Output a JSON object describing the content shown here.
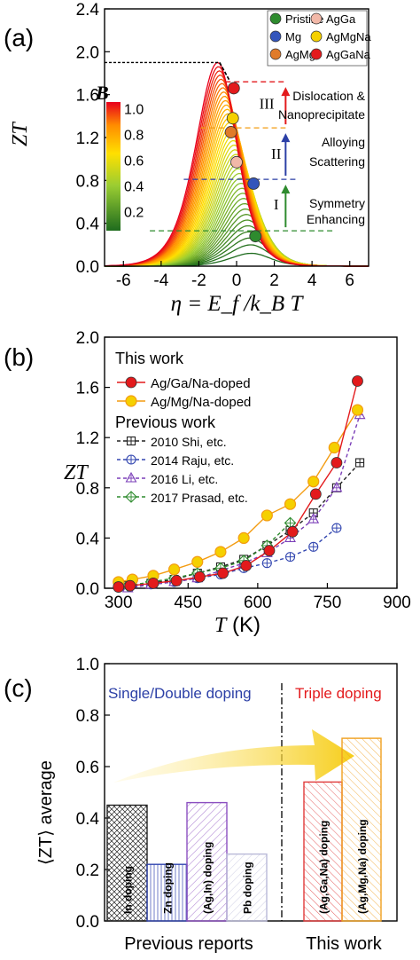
{
  "colors": {
    "red": "#e31a1c",
    "yellow": "#f5d000",
    "orange": "#f39c12",
    "blue": "#2b3fa6",
    "green": "#2e8b2e",
    "purple": "#7b3fb8",
    "darkgreen": "#1e6b1e"
  },
  "chart_data": [
    {
      "panel": "(a)",
      "type": "line",
      "ylabel": "ZT",
      "xlabel": "η = E_f /k_B T",
      "xlim": [
        -7,
        7
      ],
      "ylim": [
        0,
        2.4
      ],
      "xticks": [
        "-6",
        "-4",
        "-2",
        "0",
        "2",
        "4",
        "6"
      ],
      "yticks": [
        "0.0",
        "0.4",
        "0.8",
        "1.2",
        "1.6",
        "2.0",
        "2.4"
      ],
      "colorbar": {
        "label": "B",
        "ticks": [
          "0.2",
          "0.4",
          "0.6",
          "0.8",
          "1.0"
        ],
        "range": [
          0.05,
          1.05
        ]
      },
      "curve_family": {
        "peak_eta_at_max": -1.0,
        "peak_zt_at_max": 1.9,
        "B_values_count": 40
      },
      "points": [
        {
          "name": "Pristine",
          "x": 1.0,
          "y": 0.28,
          "color": "#2e8b2e"
        },
        {
          "name": "Mg",
          "x": 0.9,
          "y": 0.77,
          "color": "#3355bb"
        },
        {
          "name": "AgMg",
          "x": -0.3,
          "y": 1.25,
          "color": "#e07b2a"
        },
        {
          "name": "AgGa",
          "x": 0.0,
          "y": 0.97,
          "color": "#f2b8a8"
        },
        {
          "name": "AgMgNa",
          "x": -0.2,
          "y": 1.38,
          "color": "#f5d000"
        },
        {
          "name": "AgGaNa",
          "x": -0.15,
          "y": 1.66,
          "color": "#e31a1c"
        }
      ],
      "legend": [
        "Pristine",
        "AgGa",
        "Mg",
        "AgMgNa",
        "AgMg",
        "AgGaNa"
      ],
      "annotations": [
        {
          "label": "I",
          "text": "Symmetry Enhancing"
        },
        {
          "label": "II",
          "text": "Alloying Scattering"
        },
        {
          "label": "III",
          "text": "Dislocation & Nanoprecipitate"
        }
      ],
      "guide_lines": [
        0.33,
        0.81,
        1.29,
        1.72,
        1.9
      ]
    },
    {
      "panel": "(b)",
      "type": "line",
      "ylabel": "ZT",
      "xlabel": "T (K)",
      "xlim": [
        270,
        900
      ],
      "ylim": [
        0,
        2.0
      ],
      "xticks": [
        "300",
        "450",
        "600",
        "750",
        "900"
      ],
      "yticks": [
        "0.0",
        "0.4",
        "0.8",
        "1.2",
        "1.6",
        "2.0"
      ],
      "legend_headers": [
        "This work",
        "Previous work"
      ],
      "series": [
        {
          "name": "Ag/Ga/Na-doped",
          "color": "#e31a1c",
          "marker": "circle",
          "dash": "",
          "x": [
            300,
            325,
            375,
            425,
            475,
            525,
            575,
            625,
            675,
            725,
            770,
            815
          ],
          "y": [
            0.01,
            0.02,
            0.04,
            0.06,
            0.09,
            0.12,
            0.18,
            0.3,
            0.45,
            0.75,
            1.0,
            1.65
          ]
        },
        {
          "name": "Ag/Mg/Na-doped",
          "color": "#f39c12",
          "marker": "circle-yellow",
          "dash": "",
          "x": [
            300,
            330,
            375,
            420,
            470,
            520,
            570,
            620,
            670,
            720,
            765,
            815
          ],
          "y": [
            0.05,
            0.07,
            0.1,
            0.15,
            0.21,
            0.29,
            0.4,
            0.58,
            0.67,
            0.85,
            1.12,
            1.42
          ]
        },
        {
          "name": "2010 Shi, etc.",
          "color": "#222222",
          "marker": "square-plus",
          "dash": "4,3",
          "x": [
            320,
            370,
            420,
            470,
            520,
            570,
            620,
            670,
            720,
            770,
            820
          ],
          "y": [
            0.02,
            0.04,
            0.07,
            0.12,
            0.17,
            0.23,
            0.34,
            0.46,
            0.6,
            0.8,
            1.0
          ]
        },
        {
          "name": "2014 Raju, etc.",
          "color": "#3347b0",
          "marker": "circle-plus",
          "dash": "4,3",
          "x": [
            320,
            370,
            420,
            470,
            520,
            570,
            620,
            670,
            720,
            770
          ],
          "y": [
            0.01,
            0.03,
            0.05,
            0.08,
            0.11,
            0.16,
            0.2,
            0.25,
            0.33,
            0.48
          ]
        },
        {
          "name": "2016 Li, etc.",
          "color": "#7b3fb8",
          "marker": "triangle",
          "dash": "4,3",
          "x": [
            320,
            370,
            420,
            470,
            520,
            570,
            620,
            670,
            720,
            770,
            820
          ],
          "y": [
            0.0,
            0.03,
            0.05,
            0.08,
            0.14,
            0.2,
            0.28,
            0.4,
            0.55,
            0.8,
            1.38
          ]
        },
        {
          "name": "2017 Prasad, etc.",
          "color": "#2e8b2e",
          "marker": "diamond-plus",
          "dash": "4,3",
          "x": [
            320,
            370,
            420,
            470,
            520,
            570,
            620,
            670
          ],
          "y": [
            0.02,
            0.05,
            0.08,
            0.12,
            0.16,
            0.22,
            0.34,
            0.52
          ]
        }
      ]
    },
    {
      "panel": "(c)",
      "type": "bar",
      "ylabel": "⟨ZT⟩ average",
      "ylim": [
        0,
        1.0
      ],
      "yticks": [
        "0.0",
        "0.2",
        "0.4",
        "0.6",
        "0.8",
        "1.0"
      ],
      "header_left": "Single/Double doping",
      "header_right": "Triple doping",
      "group_labels": [
        "Previous reports",
        "This work"
      ],
      "categories": [
        "In doping",
        "Zn doping",
        "(Ag,In) doping",
        "Pb doping",
        "(Ag,Ga,Na) doping",
        "(Ag,Mg,Na) doping"
      ],
      "values": [
        0.45,
        0.22,
        0.46,
        0.26,
        0.54,
        0.71
      ],
      "colors": [
        "#222222",
        "#3347b0",
        "#8b4fc0",
        "#b9b9d8",
        "#e03a3a",
        "#f0a020"
      ]
    }
  ]
}
